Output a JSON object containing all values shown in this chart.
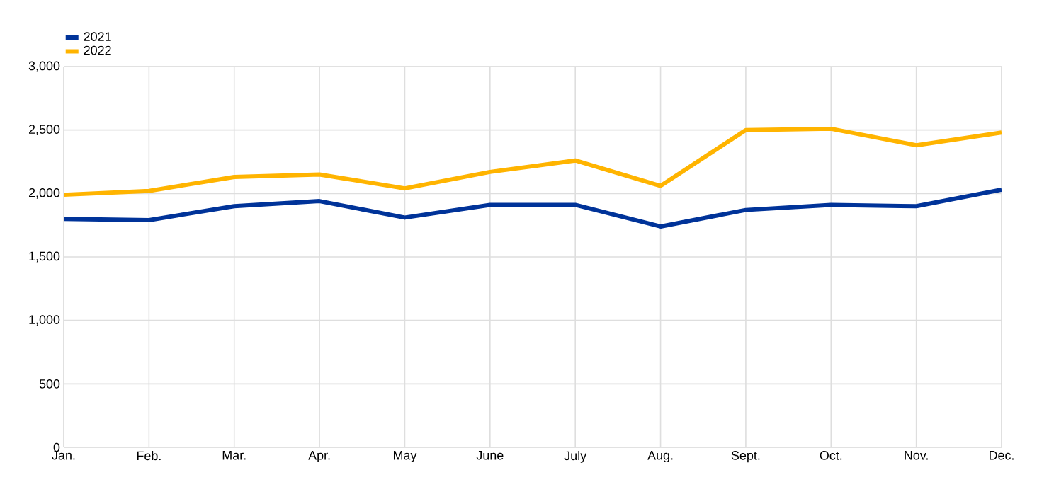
{
  "chart_data": {
    "type": "line",
    "categories": [
      "Jan.",
      "Feb.",
      "Mar.",
      "Apr.",
      "May",
      "June",
      "July",
      "Aug.",
      "Sept.",
      "Oct.",
      "Nov.",
      "Dec."
    ],
    "series": [
      {
        "name": "2021",
        "color": "#003399",
        "values": [
          1800,
          1790,
          1900,
          1940,
          1810,
          1910,
          1910,
          1740,
          1870,
          1910,
          1900,
          2030
        ]
      },
      {
        "name": "2022",
        "color": "#ffb400",
        "values": [
          1990,
          2020,
          2130,
          2150,
          2040,
          2170,
          2260,
          2060,
          2500,
          2510,
          2380,
          2480
        ]
      }
    ],
    "ylim": [
      0,
      3000
    ],
    "yticks": [
      {
        "value": 0,
        "label": "0"
      },
      {
        "value": 500,
        "label": "500"
      },
      {
        "value": 1000,
        "label": "1,000"
      },
      {
        "value": 1500,
        "label": "1,500"
      },
      {
        "value": 2000,
        "label": "2,000"
      },
      {
        "value": 2500,
        "label": "2,500"
      },
      {
        "value": 3000,
        "label": "3,000"
      }
    ],
    "grid": true,
    "legend": "top left",
    "marker": "none",
    "line_style": "solid"
  }
}
